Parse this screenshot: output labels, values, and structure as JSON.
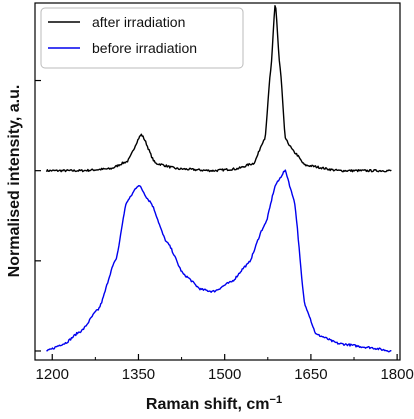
{
  "chart_data": {
    "type": "line",
    "xlabel": "Raman shift, cm",
    "xlabel_superscript": "−1",
    "ylabel": "Normalised intensity, a.u.",
    "xlim": [
      1170,
      1805
    ],
    "x_ticks": [
      1200,
      1350,
      1500,
      1650,
      1800
    ],
    "ylim": [
      -0.05,
      1.93
    ],
    "grid": false,
    "y_tick_labels_shown": false,
    "legend_position": "top-left",
    "series": [
      {
        "name": "after irradiation",
        "color": "#000000",
        "points": [
          [
            1190,
            1.0
          ],
          [
            1250,
            1.0
          ],
          [
            1300,
            1.01
          ],
          [
            1330,
            1.05
          ],
          [
            1355,
            1.2
          ],
          [
            1380,
            1.04
          ],
          [
            1420,
            1.01
          ],
          [
            1480,
            1.0
          ],
          [
            1520,
            1.01
          ],
          [
            1550,
            1.04
          ],
          [
            1570,
            1.18
          ],
          [
            1580,
            1.55
          ],
          [
            1588,
            1.93
          ],
          [
            1596,
            1.58
          ],
          [
            1606,
            1.17
          ],
          [
            1622,
            1.1
          ],
          [
            1640,
            1.03
          ],
          [
            1700,
            1.0
          ],
          [
            1790,
            1.0
          ]
        ]
      },
      {
        "name": "before irradiation",
        "color": "#0000ee",
        "points": [
          [
            1190,
            0.0
          ],
          [
            1220,
            0.04
          ],
          [
            1250,
            0.11
          ],
          [
            1280,
            0.23
          ],
          [
            1310,
            0.5
          ],
          [
            1330,
            0.83
          ],
          [
            1350,
            0.92
          ],
          [
            1370,
            0.83
          ],
          [
            1400,
            0.6
          ],
          [
            1430,
            0.42
          ],
          [
            1460,
            0.34
          ],
          [
            1480,
            0.33
          ],
          [
            1510,
            0.38
          ],
          [
            1540,
            0.48
          ],
          [
            1570,
            0.7
          ],
          [
            1590,
            0.93
          ],
          [
            1605,
            1.0
          ],
          [
            1620,
            0.85
          ],
          [
            1640,
            0.25
          ],
          [
            1660,
            0.09
          ],
          [
            1700,
            0.04
          ],
          [
            1750,
            0.02
          ],
          [
            1790,
            0.0
          ]
        ]
      }
    ]
  }
}
